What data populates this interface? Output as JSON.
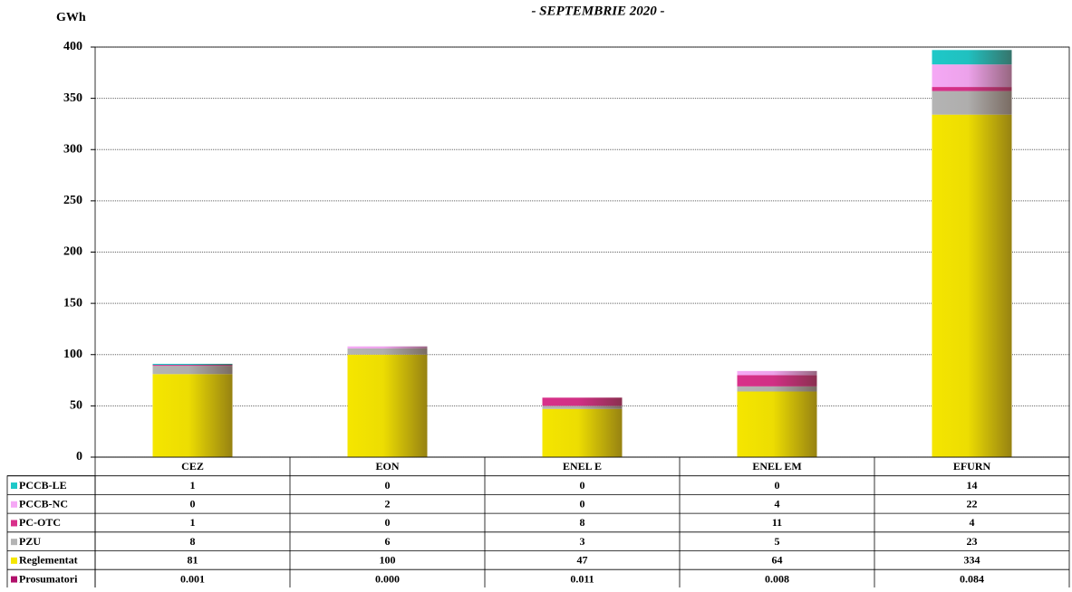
{
  "chart_data": {
    "type": "stacked-bar",
    "subtitle": "- SEPTEMBRIE 2020 -",
    "y_label": "GWh",
    "categories": [
      "CEZ",
      "EON",
      "ENEL E",
      "ENEL EM",
      "EFURN"
    ],
    "ylim": [
      0,
      400
    ],
    "yticks": [
      0,
      50,
      100,
      150,
      200,
      250,
      300,
      350,
      400
    ],
    "grid": true,
    "series": [
      {
        "name": "PCCB-LE",
        "color": "#1ec8c8",
        "values": [
          1,
          0,
          0,
          0,
          14
        ]
      },
      {
        "name": "PCCB-NC",
        "color": "#f5a8f5",
        "values": [
          0,
          2,
          0,
          4,
          22
        ]
      },
      {
        "name": "PC-OTC",
        "color": "#d8308a",
        "values": [
          1,
          0,
          8,
          11,
          4
        ]
      },
      {
        "name": "PZU",
        "color": "#b4b4b4",
        "values": [
          8,
          6,
          3,
          5,
          23
        ]
      },
      {
        "name": "Reglementat",
        "color": "#f5e600",
        "values": [
          81,
          100,
          47,
          64,
          334
        ]
      },
      {
        "name": "Prosumatori",
        "color": "#b0106a",
        "values": [
          0.001,
          0,
          0.011,
          0.008,
          0.084
        ],
        "value_labels": [
          "0.001",
          "0.000",
          "0.011",
          "0.008",
          "0.084"
        ]
      }
    ]
  }
}
